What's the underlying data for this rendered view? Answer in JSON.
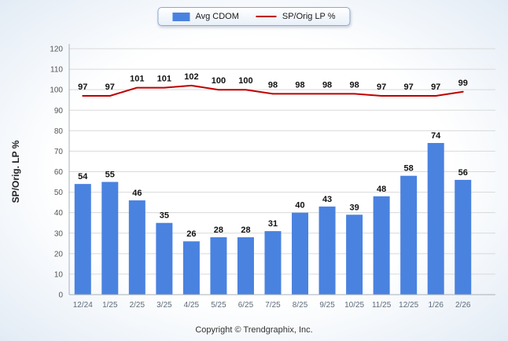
{
  "legend": {
    "items": [
      {
        "label": "Avg CDOM",
        "swatch": "bar-swatch"
      },
      {
        "label": "SP/Orig LP %",
        "swatch": "line-swatch"
      }
    ]
  },
  "axis": {
    "y_title": "SP/Orig. LP %"
  },
  "footer": "Copyright © Trendgraphix, Inc.",
  "colors": {
    "bar": "#4a82e0",
    "line": "#c00000",
    "grid": "#d9d9d9",
    "axis_line": "#a6b0ba",
    "tick_text": "#555555",
    "x_tick_text": "#5f6b7a",
    "value_text": "#111111",
    "y_title_text": "#222222"
  },
  "chart_data": {
    "type": "bar+line",
    "categories": [
      "12/24",
      "1/25",
      "2/25",
      "3/25",
      "4/25",
      "5/25",
      "6/25",
      "7/25",
      "8/25",
      "9/25",
      "10/25",
      "11/25",
      "12/25",
      "1/26",
      "2/26"
    ],
    "series": [
      {
        "name": "Avg CDOM",
        "type": "bar",
        "values": [
          54,
          55,
          46,
          35,
          26,
          28,
          28,
          31,
          40,
          43,
          39,
          48,
          58,
          74,
          56
        ]
      },
      {
        "name": "SP/Orig LP %",
        "type": "line",
        "values": [
          97,
          97,
          101,
          101,
          102,
          100,
          100,
          98,
          98,
          98,
          98,
          97,
          97,
          97,
          99
        ]
      }
    ],
    "title": "",
    "xlabel": "",
    "ylabel": "SP/Orig. LP %",
    "ylim": [
      0,
      120
    ],
    "ytick_step": 10,
    "grid": true,
    "legend_position": "top",
    "data_labels": true
  }
}
